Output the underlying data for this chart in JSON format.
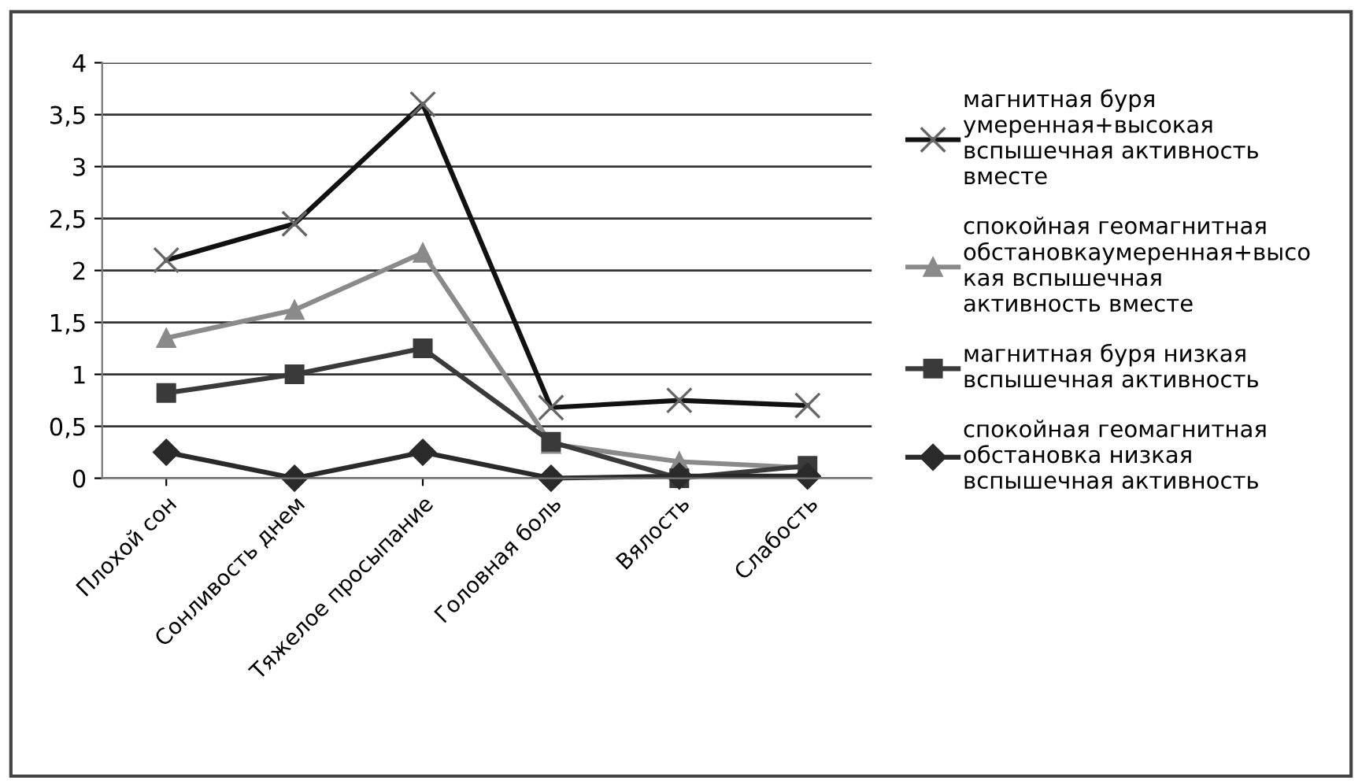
{
  "chart_data": {
    "type": "line",
    "categories": [
      "Плохой сон",
      "Сонливость днем",
      "Тяжелое просыпание",
      "Головная боль",
      "Вялость",
      "Слабость"
    ],
    "series": [
      {
        "name": "магнитная буря умеренная+высокая вспышечная активность вместе",
        "color": "#111111",
        "marker": "cross",
        "values": [
          2.1,
          2.45,
          3.6,
          0.68,
          0.75,
          0.7
        ]
      },
      {
        "name": "спокойная геомагнитная обстановкаумеренная+высокая вспышечная активность вместе",
        "color": "#8a8a8a",
        "marker": "triangle",
        "values": [
          1.35,
          1.62,
          2.17,
          0.33,
          0.16,
          0.1
        ]
      },
      {
        "name": "магнитная буря низкая вспышечная активность",
        "color": "#3a3a3a",
        "marker": "square",
        "values": [
          0.82,
          1.0,
          1.25,
          0.35,
          0.0,
          0.12
        ]
      },
      {
        "name": "спокойная геомагнитная обстановка низкая вспышечная активность",
        "color": "#2a2a2a",
        "marker": "diamond",
        "values": [
          0.25,
          0.0,
          0.25,
          0.0,
          0.02,
          0.02
        ]
      }
    ],
    "ylim": [
      0,
      4
    ],
    "yticks": [
      0,
      {
        "value": 0.5,
        "label": "0,5"
      },
      1,
      {
        "value": 1.5,
        "label": "1,5"
      },
      2,
      {
        "value": 2.5,
        "label": "2,5"
      },
      3,
      {
        "value": 3.5,
        "label": "3,5"
      },
      4
    ],
    "grid": "y",
    "legend": "right",
    "line_style": "solid"
  }
}
